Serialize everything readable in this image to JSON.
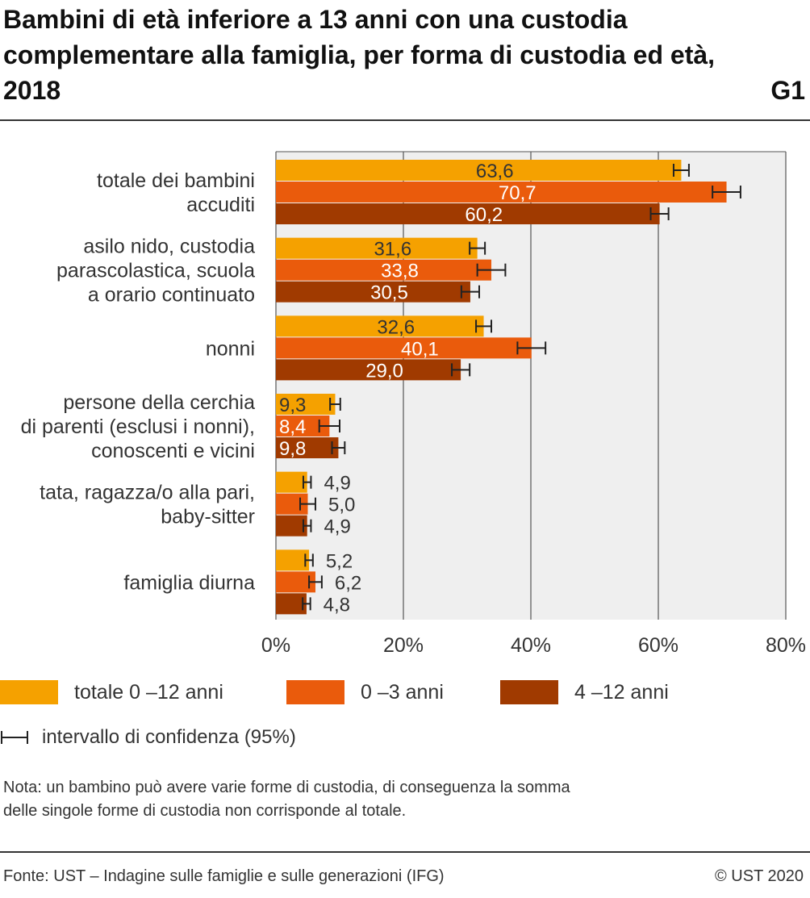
{
  "figure": {
    "title": "Bambini di età inferiore a 13 anni con una custodia complementare alla famiglia, per forma di custodia ed età, 2018",
    "id": "G1"
  },
  "colors": {
    "series_0": "#F5A100",
    "series_1": "#EA5B0C",
    "series_2": "#A03A00",
    "plot_bg": "#EFEFEF",
    "grid": "#555555",
    "error_bar": "#222222"
  },
  "chart_data": {
    "type": "bar",
    "orientation": "horizontal",
    "categories": [
      [
        "totale dei bambini",
        "accuditi"
      ],
      [
        "asilo nido, custodia",
        "parascolastica, scuola",
        "a orario continuato"
      ],
      [
        "nonni"
      ],
      [
        "persone della cerchia",
        "di parenti (esclusi i nonni),",
        "conoscenti e vicini"
      ],
      [
        "tata, ragazza/o alla pari,",
        "baby-sitter"
      ],
      [
        "famiglia diurna"
      ]
    ],
    "series": [
      {
        "name": "totale 0 –12 anni",
        "values": [
          63.6,
          31.6,
          32.6,
          9.3,
          4.9,
          5.2
        ],
        "labels": [
          "63,6",
          "31,6",
          "32,6",
          "9,3",
          "4,9",
          "5,2"
        ],
        "ci": [
          [
            62.4,
            64.8
          ],
          [
            30.4,
            32.8
          ],
          [
            31.4,
            33.8
          ],
          [
            8.5,
            10.1
          ],
          [
            4.3,
            5.5
          ],
          [
            4.6,
            5.8
          ]
        ]
      },
      {
        "name": "0 –3 anni",
        "values": [
          70.7,
          33.8,
          40.1,
          8.4,
          5.0,
          6.2
        ],
        "labels": [
          "70,7",
          "33,8",
          "40,1",
          "8,4",
          "5,0",
          "6,2"
        ],
        "ci": [
          [
            68.5,
            72.9
          ],
          [
            31.6,
            36.0
          ],
          [
            37.9,
            42.3
          ],
          [
            6.8,
            10.0
          ],
          [
            3.8,
            6.2
          ],
          [
            5.2,
            7.2
          ]
        ]
      },
      {
        "name": "4 –12 anni",
        "values": [
          60.2,
          30.5,
          29.0,
          9.8,
          4.9,
          4.8
        ],
        "labels": [
          "60,2",
          "30,5",
          "29,0",
          "9,8",
          "4,9",
          "4,8"
        ],
        "ci": [
          [
            58.8,
            61.6
          ],
          [
            29.1,
            31.9
          ],
          [
            27.6,
            30.4
          ],
          [
            8.8,
            10.8
          ],
          [
            4.3,
            5.5
          ],
          [
            4.2,
            5.4
          ]
        ]
      }
    ],
    "xlim": [
      0,
      80
    ],
    "xticks": [
      "0%",
      "20%",
      "40%",
      "60%",
      "80%"
    ],
    "grid": true,
    "legend_position": "bottom",
    "ci_label": "intervallo di confidenza (95%)"
  },
  "note": {
    "line1": "Nota: un bambino può avere varie forme di custodia, di conseguenza la somma",
    "line2": "delle singole forme di custodia non corrisponde al totale."
  },
  "footer": {
    "source": "Fonte: UST – Indagine sulle famiglie e sulle generazioni (IFG)",
    "copyright": "© UST 2020"
  }
}
